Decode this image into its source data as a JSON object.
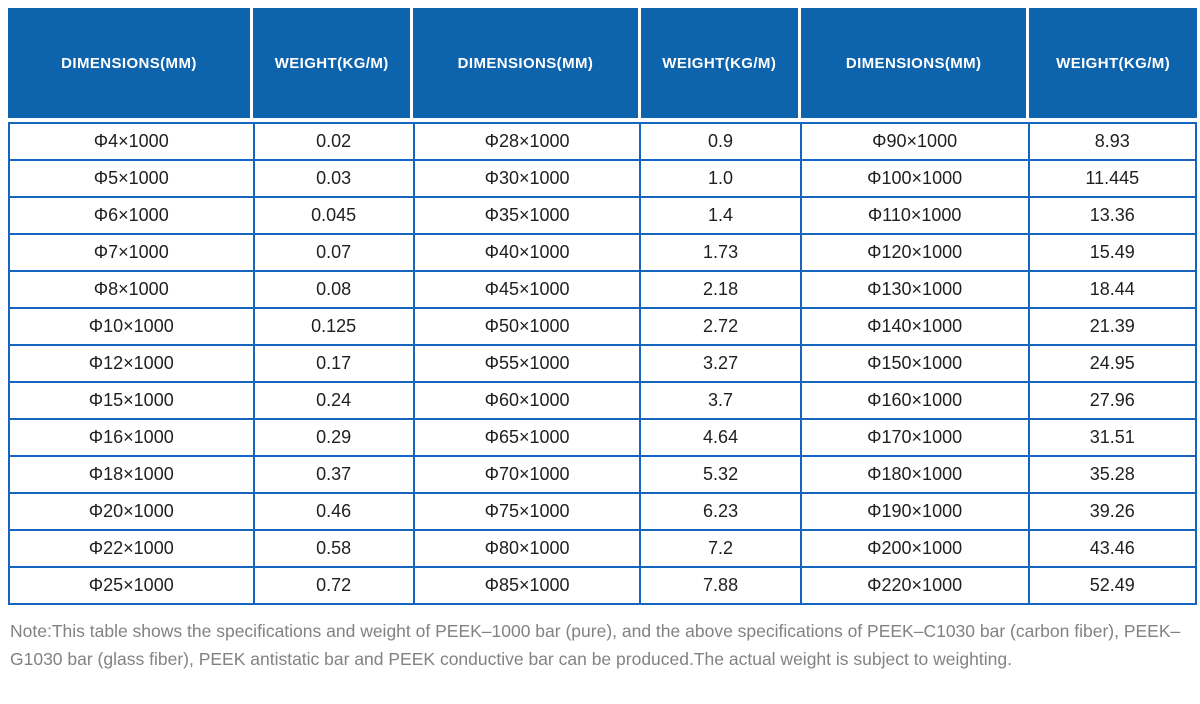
{
  "table": {
    "headers": [
      "DIMENSIONS(MM)",
      "WEIGHT(KG/M)",
      "DIMENSIONS(MM)",
      "WEIGHT(KG/M)",
      "DIMENSIONS(MM)",
      "WEIGHT(KG/M)"
    ],
    "rows": [
      [
        "Φ4×1000",
        "0.02",
        "Φ28×1000",
        "0.9",
        "Φ90×1000",
        "8.93"
      ],
      [
        "Φ5×1000",
        "0.03",
        "Φ30×1000",
        "1.0",
        "Φ100×1000",
        "11.445"
      ],
      [
        "Φ6×1000",
        "0.045",
        "Φ35×1000",
        "1.4",
        "Φ110×1000",
        "13.36"
      ],
      [
        "Φ7×1000",
        "0.07",
        "Φ40×1000",
        "1.73",
        "Φ120×1000",
        "15.49"
      ],
      [
        "Φ8×1000",
        "0.08",
        "Φ45×1000",
        "2.18",
        "Φ130×1000",
        "18.44"
      ],
      [
        "Φ10×1000",
        "0.125",
        "Φ50×1000",
        "2.72",
        "Φ140×1000",
        "21.39"
      ],
      [
        "Φ12×1000",
        "0.17",
        "Φ55×1000",
        "3.27",
        "Φ150×1000",
        "24.95"
      ],
      [
        "Φ15×1000",
        "0.24",
        "Φ60×1000",
        "3.7",
        "Φ160×1000",
        "27.96"
      ],
      [
        "Φ16×1000",
        "0.29",
        "Φ65×1000",
        "4.64",
        "Φ170×1000",
        "31.51"
      ],
      [
        "Φ18×1000",
        "0.37",
        "Φ70×1000",
        "5.32",
        "Φ180×1000",
        "35.28"
      ],
      [
        "Φ20×1000",
        "0.46",
        "Φ75×1000",
        "6.23",
        "Φ190×1000",
        "39.26"
      ],
      [
        "Φ22×1000",
        "0.58",
        "Φ80×1000",
        "7.2",
        "Φ200×1000",
        "43.46"
      ],
      [
        "Φ25×1000",
        "0.72",
        "Φ85×1000",
        "7.88",
        "Φ220×1000",
        "52.49"
      ]
    ]
  },
  "note": "Note:This table shows the specifications and weight of PEEK–1000 bar (pure), and the above specifications of PEEK–C1030 bar (carbon fiber), PEEK–G1030 bar (glass fiber), PEEK antistatic bar and PEEK conductive bar can be produced.The actual weight is subject to weighting.",
  "colors": {
    "header-bg": "#0e63ad",
    "grid-border": "#1565c0",
    "header-text": "#ffffff",
    "cell-text": "#1f1f1f",
    "note-text": "#828282"
  }
}
